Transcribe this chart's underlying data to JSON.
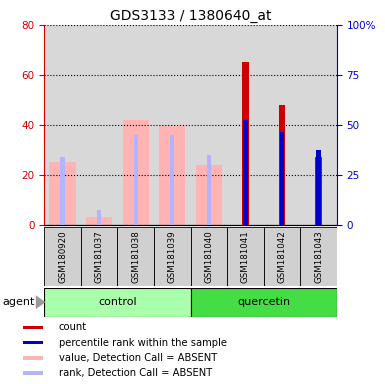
{
  "title": "GDS3133 / 1380640_at",
  "samples": [
    "GSM180920",
    "GSM181037",
    "GSM181038",
    "GSM181039",
    "GSM181040",
    "GSM181041",
    "GSM181042",
    "GSM181043"
  ],
  "count_values": [
    null,
    null,
    null,
    null,
    null,
    65,
    48,
    27
  ],
  "rank_values_left_scale": [
    null,
    null,
    null,
    null,
    null,
    42,
    37,
    30
  ],
  "absent_value_bars": [
    25,
    3,
    42,
    40,
    24,
    null,
    null,
    null
  ],
  "absent_rank_bars_left_scale": [
    27,
    6,
    36,
    36,
    28,
    null,
    null,
    null
  ],
  "left_ylim": [
    0,
    80
  ],
  "right_ylim": [
    0,
    100
  ],
  "left_yticks": [
    0,
    20,
    40,
    60,
    80
  ],
  "right_yticks": [
    0,
    25,
    50,
    75,
    100
  ],
  "right_yticklabels": [
    "0",
    "25",
    "50",
    "75",
    "100%"
  ],
  "left_color": "#cc0000",
  "right_color": "#0000cc",
  "absent_value_color": "#ffb3b3",
  "absent_rank_color": "#b3b3ff",
  "control_color": "#aaffaa",
  "quercetin_color": "#44dd44",
  "legend_items": [
    {
      "label": "count",
      "color": "#cc0000"
    },
    {
      "label": "percentile rank within the sample",
      "color": "#0000cc"
    },
    {
      "label": "value, Detection Call = ABSENT",
      "color": "#ffb3b3"
    },
    {
      "label": "rank, Detection Call = ABSENT",
      "color": "#b3b3ff"
    }
  ]
}
